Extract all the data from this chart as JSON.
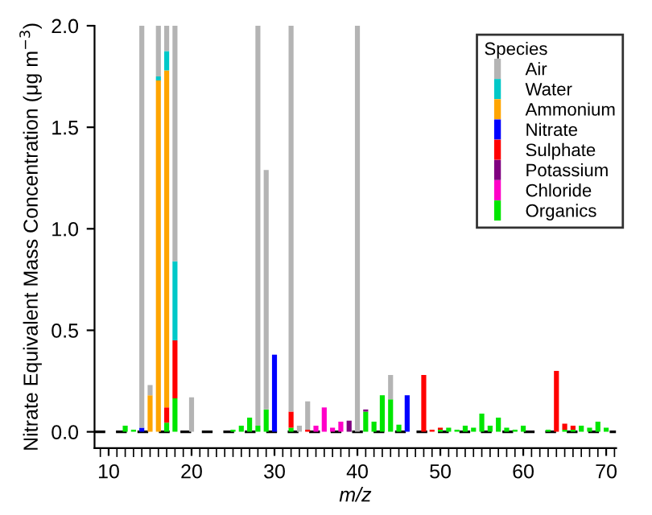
{
  "chart_data": {
    "type": "bar",
    "stacked": true,
    "xlabel": "m/z",
    "ylabel": "Nitrate Equivalent Mass Concentration (μg m$^{−3}$)",
    "legend_title": "Species",
    "legend": "top right",
    "x": [
      12,
      13,
      14,
      15,
      16,
      17,
      18,
      19,
      20,
      21,
      22,
      23,
      24,
      25,
      26,
      27,
      28,
      29,
      30,
      31,
      32,
      33,
      34,
      35,
      36,
      37,
      38,
      39,
      40,
      41,
      42,
      43,
      44,
      45,
      46,
      47,
      48,
      49,
      50,
      51,
      52,
      53,
      54,
      55,
      56,
      57,
      58,
      59,
      60,
      61,
      62,
      63,
      64,
      65,
      66,
      67,
      68,
      69,
      70
    ],
    "series": [
      {
        "name": "Organics",
        "color": "#00e600",
        "values": [
          0.03,
          0.01,
          null,
          null,
          null,
          0.045,
          0.165,
          null,
          null,
          null,
          null,
          null,
          null,
          0.01,
          0.03,
          0.07,
          0.03,
          0.11,
          null,
          null,
          0.02,
          null,
          null,
          null,
          null,
          null,
          null,
          null,
          null,
          0.1,
          0.05,
          0.18,
          0.16,
          0.035,
          null,
          null,
          null,
          null,
          0.01,
          0.02,
          0.01,
          0.03,
          0.02,
          0.09,
          0.03,
          0.07,
          0.02,
          0.01,
          0.03,
          null,
          null,
          0.01,
          null,
          0.01,
          0.01,
          0.03,
          0.02,
          0.05,
          0.02
        ]
      },
      {
        "name": "Chloride",
        "color": "#ff00c8",
        "values": [
          null,
          null,
          null,
          null,
          null,
          null,
          null,
          null,
          null,
          null,
          null,
          null,
          null,
          null,
          null,
          null,
          null,
          null,
          null,
          null,
          null,
          null,
          null,
          0.03,
          0.12,
          0.02,
          0.05,
          null,
          null,
          null,
          null,
          null,
          null,
          null,
          null,
          null,
          null,
          null,
          null,
          null,
          null,
          null,
          null,
          null,
          null,
          null,
          null,
          null,
          null,
          null,
          null,
          null,
          null,
          null,
          null,
          null,
          null,
          null,
          null
        ]
      },
      {
        "name": "Potassium",
        "color": "#800080",
        "values": [
          null,
          null,
          null,
          null,
          null,
          null,
          null,
          null,
          null,
          null,
          null,
          null,
          null,
          null,
          null,
          null,
          null,
          null,
          null,
          null,
          null,
          null,
          null,
          null,
          null,
          null,
          null,
          0.055,
          null,
          0.01,
          null,
          null,
          null,
          null,
          null,
          null,
          null,
          null,
          null,
          null,
          null,
          null,
          null,
          null,
          null,
          null,
          null,
          null,
          null,
          null,
          null,
          null,
          null,
          null,
          null,
          null,
          null,
          null,
          null
        ]
      },
      {
        "name": "Sulphate",
        "color": "#ff0000",
        "values": [
          null,
          null,
          null,
          null,
          null,
          0.075,
          0.285,
          null,
          null,
          null,
          null,
          null,
          null,
          null,
          null,
          null,
          null,
          null,
          null,
          null,
          0.08,
          null,
          0.01,
          null,
          null,
          null,
          null,
          null,
          null,
          null,
          null,
          null,
          null,
          null,
          null,
          null,
          0.28,
          0.01,
          0.01,
          null,
          null,
          null,
          null,
          null,
          null,
          null,
          null,
          null,
          null,
          null,
          null,
          null,
          0.3,
          0.03,
          0.02,
          null,
          null,
          null,
          null
        ]
      },
      {
        "name": "Nitrate",
        "color": "#0000ff",
        "values": [
          null,
          null,
          0.02,
          null,
          null,
          null,
          null,
          null,
          null,
          null,
          null,
          null,
          null,
          null,
          null,
          null,
          null,
          null,
          0.38,
          null,
          null,
          null,
          null,
          null,
          null,
          null,
          null,
          null,
          null,
          null,
          null,
          null,
          null,
          null,
          0.18,
          null,
          null,
          null,
          null,
          null,
          null,
          null,
          null,
          null,
          null,
          null,
          null,
          null,
          null,
          null,
          null,
          null,
          null,
          null,
          null,
          null,
          null,
          null,
          null
        ]
      },
      {
        "name": "Ammonium",
        "color": "#ffa500",
        "values": [
          null,
          null,
          null,
          0.18,
          1.73,
          1.66,
          null,
          null,
          null,
          null,
          null,
          null,
          null,
          null,
          null,
          null,
          null,
          null,
          null,
          null,
          null,
          null,
          null,
          null,
          null,
          null,
          null,
          null,
          null,
          null,
          null,
          null,
          null,
          null,
          null,
          null,
          null,
          null,
          null,
          null,
          null,
          null,
          null,
          null,
          null,
          null,
          null,
          null,
          null,
          null,
          null,
          null,
          null,
          null,
          null,
          null,
          null,
          null,
          null
        ]
      },
      {
        "name": "Water",
        "color": "#00c8c8",
        "values": [
          null,
          null,
          null,
          null,
          0.02,
          0.095,
          0.39,
          null,
          null,
          null,
          null,
          null,
          null,
          null,
          null,
          null,
          null,
          null,
          null,
          null,
          null,
          null,
          null,
          null,
          null,
          null,
          null,
          null,
          null,
          null,
          null,
          null,
          null,
          null,
          null,
          null,
          null,
          null,
          null,
          null,
          null,
          null,
          null,
          null,
          null,
          null,
          null,
          null,
          null,
          null,
          null,
          null,
          null,
          null,
          null,
          null,
          null,
          null,
          null
        ]
      },
      {
        "name": "Air",
        "color": "#b4b4b4",
        "values": [
          null,
          null,
          1.98,
          0.05,
          0.25,
          0.125,
          1.16,
          null,
          0.17,
          null,
          null,
          null,
          null,
          null,
          null,
          null,
          1.97,
          1.18,
          null,
          null,
          1.9,
          0.03,
          0.14,
          null,
          null,
          null,
          null,
          null,
          2.0,
          null,
          null,
          null,
          0.12,
          null,
          null,
          null,
          null,
          null,
          null,
          null,
          null,
          null,
          null,
          null,
          null,
          null,
          null,
          null,
          null,
          null,
          null,
          null,
          null,
          null,
          null,
          null,
          null,
          null,
          null
        ]
      }
    ],
    "xlim": [
      8.3,
      71.2
    ],
    "ylim": [
      -0.08,
      2.0
    ],
    "xticks": [
      10,
      20,
      30,
      40,
      50,
      60,
      70
    ],
    "yticks": [
      {
        "value": 0,
        "label": "0.0"
      },
      {
        "value": 0.5,
        "label": "0.5"
      },
      {
        "value": 1.0,
        "label": "1.0"
      },
      {
        "value": 1.5,
        "label": "1.5"
      },
      {
        "value": 2.0,
        "label": "2.0"
      }
    ],
    "ref_lines": [
      {
        "axis": "y",
        "value": 0,
        "color": "#000000",
        "line_style": "dashed"
      }
    ],
    "grid": false
  }
}
